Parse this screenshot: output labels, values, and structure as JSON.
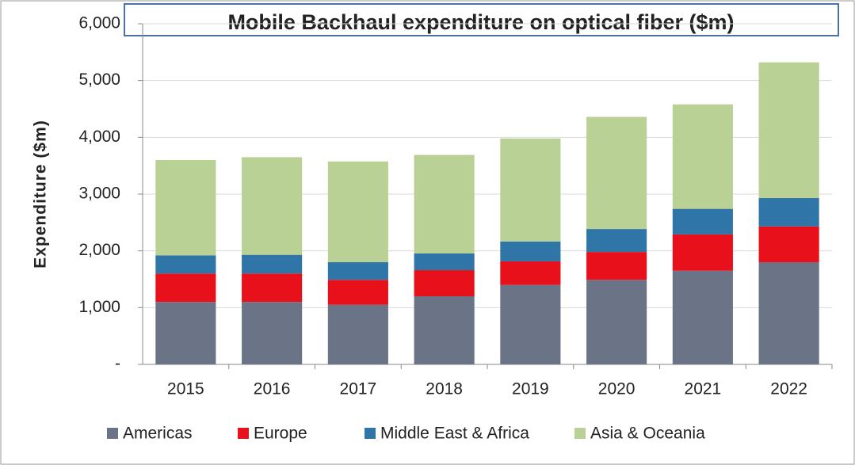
{
  "chart_data": {
    "type": "stacked_bar",
    "title": "Mobile Backhaul expenditure on optical fiber ($m)",
    "y_label": "Expenditure ($m)",
    "categories": [
      "2015",
      "2016",
      "2017",
      "2018",
      "2019",
      "2020",
      "2021",
      "2022"
    ],
    "series": [
      {
        "name": "Americas",
        "color": "#6b7386",
        "values": [
          1100,
          1100,
          1050,
          1200,
          1400,
          1490,
          1650,
          1800
        ]
      },
      {
        "name": "Europe",
        "color": "#e8111b",
        "values": [
          500,
          500,
          440,
          460,
          415,
          490,
          640,
          630
        ]
      },
      {
        "name": "Middle East & Africa",
        "color": "#2f75a8",
        "values": [
          320,
          330,
          310,
          295,
          350,
          405,
          450,
          500
        ]
      },
      {
        "name": "Asia & Oceania",
        "color": "#b9d195",
        "values": [
          1680,
          1720,
          1775,
          1735,
          1815,
          1975,
          1840,
          2390
        ]
      }
    ],
    "ylim": [
      0,
      6000
    ],
    "yticks": [
      {
        "value": 0,
        "label": "-"
      },
      {
        "value": 1000,
        "label": "1,000"
      },
      {
        "value": 2000,
        "label": "2,000"
      },
      {
        "value": 3000,
        "label": "3,000"
      },
      {
        "value": 4000,
        "label": "4,000"
      },
      {
        "value": 5000,
        "label": "5,000"
      },
      {
        "value": 6000,
        "label": "6,000"
      }
    ],
    "grid": true,
    "legend": "bottom"
  }
}
